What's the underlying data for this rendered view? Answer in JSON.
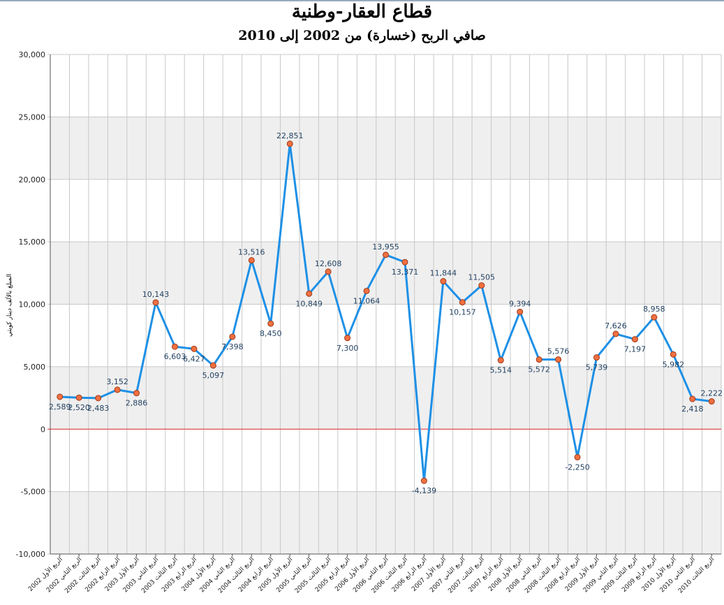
{
  "chart_data": {
    "type": "line",
    "title": "قطاع العقار-وطنية",
    "subtitle": "صافي الربح (خسارة) من 2002 إلى 2010",
    "ylabel": "المبلغ بالألف دينار كويتي",
    "ylim": [
      -10000,
      30000
    ],
    "yticks": [
      "-10,000",
      "-5,000",
      "0",
      "5,000",
      "10,000",
      "15,000",
      "20,000",
      "25,000",
      "30,000"
    ],
    "grid": true,
    "categories": [
      "الربع الأول 2002",
      "الربع الثاني 2002",
      "الربع الثالث 2002",
      "الربع الرابع 2002",
      "الربع الأول 2003",
      "الربع الثاني 2003",
      "الربع الثالث 2003",
      "الربع الرابع 2003",
      "الربع الأول 2004",
      "الربع الثاني 2004",
      "الربع الثالث 2004",
      "الربع الرابع 2004",
      "الربع الأول 2005",
      "الربع الثاني 2005",
      "الربع الثالث 2005",
      "الربع الرابع 2005",
      "الربع الأول 2006",
      "الربع الثاني 2006",
      "الربع الثالث 2006",
      "الربع الرابع 2006",
      "الربع الأول 2007",
      "الربع الثاني 2007",
      "الربع الثالث 2007",
      "الربع الرابع 2007",
      "الربع الأول 2008",
      "الربع الثاني 2008",
      "الربع الثالث 2008",
      "الربع الرابع 2008",
      "الربع الأول 2009",
      "الربع الثاني 2009",
      "الربع الثالث 2009",
      "الربع الرابع 2009",
      "الربع الأول 2010",
      "الربع الثاني 2010",
      "الربع الثالث 2010"
    ],
    "values": [
      2589,
      2520,
      2483,
      3152,
      2886,
      10143,
      6603,
      6427,
      5097,
      7398,
      13516,
      8450,
      22851,
      10849,
      12608,
      7300,
      11064,
      13955,
      13371,
      -4139,
      11844,
      10157,
      11505,
      5514,
      9394,
      5572,
      5576,
      -2250,
      5739,
      7626,
      7197,
      8958,
      5982,
      2418,
      2222
    ],
    "labels": [
      "2,589",
      "2,520",
      "2,483",
      "3,152",
      "2,886",
      "10,143",
      "6,603",
      "6,427",
      "5,097",
      "7,398",
      "13,516",
      "8,450",
      "22,851",
      "10,849",
      "12,608",
      "7,300",
      "11,064",
      "13,955",
      "13,371",
      "-4,139",
      "11,844",
      "10,157",
      "11,505",
      "5,514",
      "9,394",
      "5,572",
      "5,576",
      "-2,250",
      "5,739",
      "7,626",
      "7,197",
      "8,958",
      "5,982",
      "2,418",
      "2,222"
    ],
    "colors": {
      "line": "#1e90e6",
      "marker_fill": "#f07040",
      "marker_stroke": "#a03a1a",
      "zero_line": "#e02020",
      "band": "#efefef",
      "grid": "#c8c8c8"
    }
  }
}
